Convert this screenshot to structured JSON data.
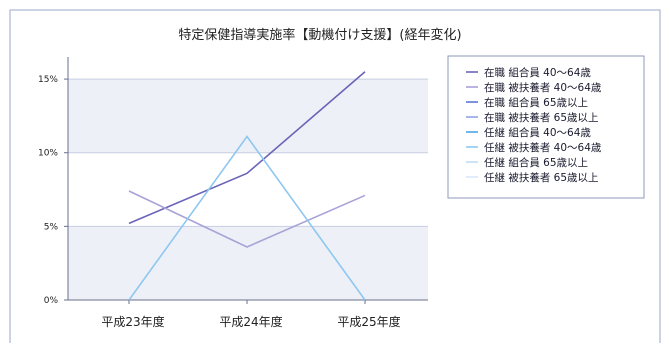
{
  "chart_data": {
    "type": "line",
    "title": "特定保健指導実施率【動機付け支援】(経年変化)",
    "xlabel": "",
    "ylabel": "",
    "categories": [
      "平成23年度",
      "平成24年度",
      "平成25年度"
    ],
    "y_ticks": [
      "0%",
      "5%",
      "10%",
      "15%"
    ],
    "ylim": [
      0,
      16.5
    ],
    "grid": true,
    "legend_position": "right",
    "series": [
      {
        "name": "在職 組合員 40～64歳",
        "color": "#6a64b8",
        "values": [
          5.2,
          8.6,
          15.5
        ]
      },
      {
        "name": "在職 被扶養者 40～64歳",
        "color": "#a8a2d8",
        "values": [
          7.4,
          3.6,
          7.1
        ]
      },
      {
        "name": "在職 組合員 65歳以上",
        "color": "#5a78d0",
        "values": [
          null,
          null,
          null
        ]
      },
      {
        "name": "在職 被扶養者 65歳以上",
        "color": "#8fa6e6",
        "values": [
          null,
          null,
          null
        ]
      },
      {
        "name": "任継 組合員 40～64歳",
        "color": "#4ea6e0",
        "values": [
          null,
          null,
          null
        ]
      },
      {
        "name": "任継 被扶養者 40～64歳",
        "color": "#8ec8f0",
        "values": [
          0,
          11.1,
          0
        ]
      },
      {
        "name": "任継 組合員 65歳以上",
        "color": "#c0dcf4",
        "values": [
          null,
          null,
          null
        ]
      },
      {
        "name": "任継 被扶養者 65歳以上",
        "color": "#d8e8f8",
        "values": [
          null,
          null,
          null
        ]
      }
    ]
  }
}
